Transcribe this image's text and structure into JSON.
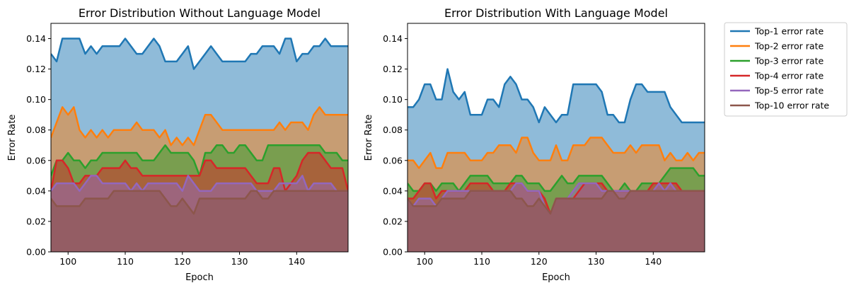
{
  "chart_data": [
    {
      "type": "area",
      "title": "Error Distribution Without Language Model",
      "xlabel": "Epoch",
      "ylabel": "Error Rate",
      "xlim": [
        97,
        149
      ],
      "ylim": [
        0,
        0.15
      ],
      "xticks": [
        "100",
        "110",
        "120",
        "130",
        "140"
      ],
      "yticks": [
        "0.00",
        "0.02",
        "0.04",
        "0.06",
        "0.08",
        "0.10",
        "0.12",
        "0.14"
      ],
      "x": [
        97,
        98,
        99,
        100,
        101,
        102,
        103,
        104,
        105,
        106,
        107,
        108,
        109,
        110,
        111,
        112,
        113,
        114,
        115,
        116,
        117,
        118,
        119,
        120,
        121,
        122,
        123,
        124,
        125,
        126,
        127,
        128,
        129,
        130,
        131,
        132,
        133,
        134,
        135,
        136,
        137,
        138,
        139,
        140,
        141,
        142,
        143,
        144,
        145,
        146,
        147,
        148,
        149
      ],
      "series": [
        {
          "name": "Top-1 error rate",
          "values": [
            0.13,
            0.125,
            0.14,
            0.14,
            0.14,
            0.14,
            0.13,
            0.135,
            0.13,
            0.135,
            0.135,
            0.135,
            0.135,
            0.14,
            0.135,
            0.13,
            0.13,
            0.135,
            0.14,
            0.135,
            0.125,
            0.125,
            0.125,
            0.13,
            0.135,
            0.12,
            0.125,
            0.13,
            0.135,
            0.13,
            0.125,
            0.125,
            0.125,
            0.125,
            0.125,
            0.13,
            0.13,
            0.135,
            0.135,
            0.135,
            0.13,
            0.14,
            0.14,
            0.125,
            0.13,
            0.13,
            0.135,
            0.135,
            0.14,
            0.135,
            0.135,
            0.135,
            0.135
          ]
        },
        {
          "name": "Top-2 error rate",
          "values": [
            0.075,
            0.085,
            0.095,
            0.09,
            0.095,
            0.08,
            0.075,
            0.08,
            0.075,
            0.08,
            0.075,
            0.08,
            0.08,
            0.08,
            0.08,
            0.085,
            0.08,
            0.08,
            0.08,
            0.075,
            0.08,
            0.07,
            0.075,
            0.07,
            0.075,
            0.07,
            0.08,
            0.09,
            0.09,
            0.085,
            0.08,
            0.08,
            0.08,
            0.08,
            0.08,
            0.08,
            0.08,
            0.08,
            0.08,
            0.08,
            0.085,
            0.08,
            0.085,
            0.085,
            0.085,
            0.08,
            0.09,
            0.095,
            0.09,
            0.09,
            0.09,
            0.09,
            0.09
          ]
        },
        {
          "name": "Top-3 error rate",
          "values": [
            0.05,
            0.06,
            0.06,
            0.065,
            0.06,
            0.06,
            0.055,
            0.06,
            0.06,
            0.065,
            0.065,
            0.065,
            0.065,
            0.065,
            0.065,
            0.065,
            0.06,
            0.06,
            0.06,
            0.065,
            0.07,
            0.065,
            0.065,
            0.065,
            0.065,
            0.06,
            0.05,
            0.065,
            0.065,
            0.07,
            0.07,
            0.065,
            0.065,
            0.07,
            0.07,
            0.065,
            0.06,
            0.06,
            0.07,
            0.07,
            0.07,
            0.07,
            0.07,
            0.07,
            0.07,
            0.07,
            0.07,
            0.07,
            0.065,
            0.065,
            0.065,
            0.06,
            0.06
          ]
        },
        {
          "name": "Top-4 error rate",
          "values": [
            0.04,
            0.06,
            0.06,
            0.055,
            0.045,
            0.045,
            0.05,
            0.05,
            0.05,
            0.055,
            0.055,
            0.055,
            0.055,
            0.06,
            0.055,
            0.055,
            0.05,
            0.05,
            0.05,
            0.05,
            0.05,
            0.05,
            0.05,
            0.05,
            0.05,
            0.05,
            0.05,
            0.06,
            0.06,
            0.055,
            0.055,
            0.055,
            0.055,
            0.055,
            0.055,
            0.05,
            0.045,
            0.045,
            0.045,
            0.055,
            0.055,
            0.04,
            0.045,
            0.05,
            0.06,
            0.065,
            0.065,
            0.065,
            0.06,
            0.055,
            0.055,
            0.055,
            0.04
          ]
        },
        {
          "name": "Top-5 error rate",
          "values": [
            0.04,
            0.045,
            0.045,
            0.045,
            0.045,
            0.04,
            0.045,
            0.05,
            0.05,
            0.045,
            0.045,
            0.045,
            0.045,
            0.045,
            0.04,
            0.045,
            0.04,
            0.045,
            0.045,
            0.045,
            0.045,
            0.045,
            0.045,
            0.04,
            0.05,
            0.045,
            0.04,
            0.04,
            0.04,
            0.045,
            0.045,
            0.045,
            0.045,
            0.045,
            0.045,
            0.045,
            0.04,
            0.04,
            0.04,
            0.04,
            0.045,
            0.045,
            0.045,
            0.045,
            0.05,
            0.04,
            0.045,
            0.045,
            0.045,
            0.045,
            0.04,
            0.04,
            0.04
          ]
        },
        {
          "name": "Top-10 error rate",
          "values": [
            0.035,
            0.03,
            0.03,
            0.03,
            0.03,
            0.03,
            0.035,
            0.035,
            0.035,
            0.035,
            0.035,
            0.04,
            0.04,
            0.04,
            0.04,
            0.04,
            0.04,
            0.04,
            0.04,
            0.04,
            0.035,
            0.03,
            0.03,
            0.035,
            0.03,
            0.025,
            0.035,
            0.035,
            0.035,
            0.035,
            0.035,
            0.035,
            0.035,
            0.035,
            0.035,
            0.04,
            0.04,
            0.035,
            0.035,
            0.04,
            0.04,
            0.04,
            0.04,
            0.04,
            0.04,
            0.04,
            0.04,
            0.04,
            0.04,
            0.04,
            0.04,
            0.04,
            0.04
          ]
        }
      ]
    },
    {
      "type": "area",
      "title": "Error Distribution With Language Model",
      "xlabel": "Epoch",
      "ylabel": "Error Rate",
      "xlim": [
        97,
        149
      ],
      "ylim": [
        0,
        0.15
      ],
      "xticks": [
        "100",
        "110",
        "120",
        "130",
        "140"
      ],
      "yticks": [
        "0.00",
        "0.02",
        "0.04",
        "0.06",
        "0.08",
        "0.10",
        "0.12",
        "0.14"
      ],
      "x": [
        97,
        98,
        99,
        100,
        101,
        102,
        103,
        104,
        105,
        106,
        107,
        108,
        109,
        110,
        111,
        112,
        113,
        114,
        115,
        116,
        117,
        118,
        119,
        120,
        121,
        122,
        123,
        124,
        125,
        126,
        127,
        128,
        129,
        130,
        131,
        132,
        133,
        134,
        135,
        136,
        137,
        138,
        139,
        140,
        141,
        142,
        143,
        144,
        145,
        146,
        147,
        148,
        149
      ],
      "series": [
        {
          "name": "Top-1 error rate",
          "values": [
            0.095,
            0.095,
            0.1,
            0.11,
            0.11,
            0.1,
            0.1,
            0.12,
            0.105,
            0.1,
            0.105,
            0.09,
            0.09,
            0.09,
            0.1,
            0.1,
            0.095,
            0.11,
            0.115,
            0.11,
            0.1,
            0.1,
            0.095,
            0.085,
            0.095,
            0.09,
            0.085,
            0.09,
            0.09,
            0.11,
            0.11,
            0.11,
            0.11,
            0.11,
            0.105,
            0.09,
            0.09,
            0.085,
            0.085,
            0.1,
            0.11,
            0.11,
            0.105,
            0.105,
            0.105,
            0.105,
            0.095,
            0.09,
            0.085,
            0.085,
            0.085,
            0.085,
            0.085
          ]
        },
        {
          "name": "Top-2 error rate",
          "values": [
            0.06,
            0.06,
            0.055,
            0.06,
            0.065,
            0.055,
            0.055,
            0.065,
            0.065,
            0.065,
            0.065,
            0.06,
            0.06,
            0.06,
            0.065,
            0.065,
            0.07,
            0.07,
            0.07,
            0.065,
            0.075,
            0.075,
            0.065,
            0.06,
            0.06,
            0.06,
            0.07,
            0.06,
            0.06,
            0.07,
            0.07,
            0.07,
            0.075,
            0.075,
            0.075,
            0.07,
            0.065,
            0.065,
            0.065,
            0.07,
            0.065,
            0.07,
            0.07,
            0.07,
            0.07,
            0.06,
            0.065,
            0.06,
            0.06,
            0.065,
            0.06,
            0.065,
            0.065
          ]
        },
        {
          "name": "Top-3 error rate",
          "values": [
            0.045,
            0.04,
            0.04,
            0.045,
            0.045,
            0.04,
            0.045,
            0.045,
            0.045,
            0.04,
            0.045,
            0.05,
            0.05,
            0.05,
            0.05,
            0.045,
            0.045,
            0.045,
            0.045,
            0.05,
            0.05,
            0.045,
            0.045,
            0.045,
            0.04,
            0.04,
            0.045,
            0.05,
            0.045,
            0.045,
            0.05,
            0.05,
            0.05,
            0.05,
            0.05,
            0.045,
            0.04,
            0.04,
            0.045,
            0.04,
            0.04,
            0.045,
            0.045,
            0.045,
            0.045,
            0.05,
            0.055,
            0.055,
            0.055,
            0.055,
            0.055,
            0.05,
            0.05
          ]
        },
        {
          "name": "Top-4 error rate",
          "values": [
            0.035,
            0.035,
            0.04,
            0.045,
            0.045,
            0.035,
            0.04,
            0.04,
            0.04,
            0.04,
            0.04,
            0.045,
            0.045,
            0.045,
            0.045,
            0.04,
            0.04,
            0.04,
            0.045,
            0.045,
            0.045,
            0.04,
            0.04,
            0.04,
            0.035,
            0.025,
            0.035,
            0.035,
            0.035,
            0.035,
            0.04,
            0.045,
            0.045,
            0.045,
            0.045,
            0.04,
            0.04,
            0.04,
            0.04,
            0.04,
            0.04,
            0.04,
            0.04,
            0.045,
            0.045,
            0.045,
            0.045,
            0.045,
            0.04,
            0.04,
            0.04,
            0.04,
            0.04
          ]
        },
        {
          "name": "Top-5 error rate",
          "values": [
            0.035,
            0.03,
            0.035,
            0.035,
            0.035,
            0.03,
            0.035,
            0.04,
            0.04,
            0.04,
            0.04,
            0.04,
            0.04,
            0.04,
            0.04,
            0.04,
            0.04,
            0.04,
            0.04,
            0.045,
            0.045,
            0.04,
            0.04,
            0.04,
            0.03,
            0.025,
            0.035,
            0.035,
            0.035,
            0.04,
            0.045,
            0.045,
            0.045,
            0.045,
            0.04,
            0.04,
            0.04,
            0.04,
            0.04,
            0.04,
            0.04,
            0.04,
            0.04,
            0.04,
            0.045,
            0.04,
            0.045,
            0.04,
            0.04,
            0.04,
            0.04,
            0.04,
            0.04
          ]
        },
        {
          "name": "Top-10 error rate",
          "values": [
            0.035,
            0.03,
            0.03,
            0.03,
            0.03,
            0.03,
            0.035,
            0.035,
            0.035,
            0.035,
            0.035,
            0.04,
            0.04,
            0.04,
            0.04,
            0.04,
            0.04,
            0.04,
            0.04,
            0.035,
            0.035,
            0.03,
            0.03,
            0.035,
            0.03,
            0.025,
            0.035,
            0.035,
            0.035,
            0.035,
            0.035,
            0.035,
            0.035,
            0.035,
            0.035,
            0.04,
            0.04,
            0.035,
            0.035,
            0.04,
            0.04,
            0.04,
            0.04,
            0.04,
            0.04,
            0.04,
            0.04,
            0.04,
            0.04,
            0.04,
            0.04,
            0.04,
            0.04
          ]
        }
      ]
    }
  ],
  "legend": {
    "placement": "outside-right",
    "entries": [
      "Top-1 error rate",
      "Top-2 error rate",
      "Top-3 error rate",
      "Top-4 error rate",
      "Top-5 error rate",
      "Top-10 error rate"
    ]
  },
  "colors": [
    "#1f77b4",
    "#ff7f0e",
    "#2ca02c",
    "#d62728",
    "#9467bd",
    "#8c564b"
  ]
}
